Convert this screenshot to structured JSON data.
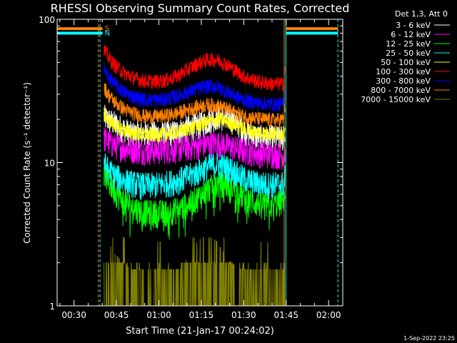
{
  "chart_data": {
    "type": "line",
    "title": "RHESSI Observing Summary Count Rates, Corrected",
    "xlabel": "Start Time (21-Jan-17 00:24:02)",
    "ylabel": "Corrected Count Rate (s⁻¹ detector⁻¹)",
    "x_unit": "minutes after 00:00 UT",
    "xlim": [
      24.03,
      125
    ],
    "ylim": [
      1,
      100
    ],
    "y_scale": "log",
    "grid": false,
    "legend_placement": "top-right, outside plot",
    "legend_header": "Det 1,3, Att 0",
    "xtick_labels": [
      "00:30",
      "00:45",
      "01:00",
      "01:15",
      "01:30",
      "01:45",
      "02:00"
    ],
    "xtick_values": [
      30,
      45,
      60,
      75,
      90,
      105,
      120
    ],
    "ytick_labels": [
      "1",
      "10",
      "100"
    ],
    "ytick_values": [
      1,
      10,
      100
    ],
    "x": [
      40.6,
      42,
      44,
      46,
      48,
      50,
      52,
      54,
      56,
      58,
      60,
      62,
      64,
      66,
      68,
      70,
      72,
      74,
      76,
      78,
      80,
      82,
      84,
      86,
      88,
      90,
      92,
      94,
      96,
      98,
      100,
      102,
      104,
      104.6
    ],
    "series": [
      {
        "name": "3 - 6 keV",
        "color": "#ffffff",
        "values": [
          21,
          20,
          19,
          18,
          17,
          16,
          16,
          16,
          16,
          16,
          16,
          16,
          16,
          16.5,
          17,
          17.5,
          18,
          18.5,
          19,
          20,
          21,
          21,
          21,
          20,
          19,
          17,
          16,
          15.5,
          15,
          15,
          15,
          15,
          15,
          16
        ]
      },
      {
        "name": "6 - 12 keV",
        "color": "#ff00ff",
        "values": [
          15,
          14,
          13.5,
          13,
          12.7,
          12.5,
          12.3,
          12.2,
          12.2,
          12.2,
          12.2,
          12.3,
          12.4,
          12.5,
          12.6,
          12.8,
          13,
          13.2,
          13.4,
          13.6,
          13.7,
          13.6,
          13.3,
          12.9,
          12.5,
          12.2,
          12,
          11.8,
          11.6,
          11.5,
          11.5,
          11.4,
          11.3,
          12
        ]
      },
      {
        "name": "12 - 25 keV",
        "color": "#00ff00",
        "values": [
          9,
          7.5,
          6.5,
          5.8,
          5.3,
          5,
          4.8,
          4.6,
          4.5,
          4.5,
          4.5,
          4.5,
          4.6,
          4.7,
          4.9,
          5.1,
          5.4,
          5.8,
          6.2,
          6.7,
          7,
          7.2,
          7.1,
          6.8,
          6.3,
          5.8,
          5.5,
          5.3,
          5.2,
          5.1,
          5.1,
          5.2,
          5.4,
          6
        ]
      },
      {
        "name": "25 - 50 keV",
        "color": "#00ffff",
        "values": [
          10,
          9,
          8.3,
          7.8,
          7.5,
          7.3,
          7.1,
          7,
          7,
          7,
          7.1,
          7.2,
          7.3,
          7.5,
          7.7,
          8,
          8.3,
          8.7,
          9.1,
          9.5,
          9.7,
          9.6,
          9.3,
          8.9,
          8.3,
          7.8,
          7.5,
          7.3,
          7.2,
          7.1,
          7.1,
          7.1,
          7.2,
          8
        ]
      },
      {
        "name": "50 - 100 keV",
        "color": "#ffff00",
        "values": [
          22,
          20,
          18.5,
          17.5,
          16.8,
          16.3,
          16,
          15.8,
          15.7,
          15.7,
          15.7,
          15.8,
          16,
          16.3,
          16.7,
          17.2,
          17.7,
          18.3,
          18.9,
          19.4,
          19.8,
          19.9,
          19.5,
          18.8,
          18,
          17.2,
          16.7,
          16.4,
          16.2,
          16.1,
          16,
          16,
          16.1,
          17
        ]
      },
      {
        "name": "100 - 300 keV",
        "color": "#ff0000",
        "values": [
          62,
          55,
          49,
          45,
          42,
          40,
          38.5,
          37.5,
          37,
          37,
          37,
          37.5,
          38.5,
          40,
          42,
          44.5,
          47,
          49.5,
          51.5,
          52.5,
          52.5,
          51,
          48.5,
          45.5,
          42.5,
          40,
          38.5,
          37.5,
          36.5,
          36,
          35.5,
          35.5,
          35.5,
          45
        ]
      },
      {
        "name": "300 - 800 keV",
        "color": "#0000ff",
        "values": [
          45,
          40,
          36,
          33,
          31,
          29.5,
          28.5,
          28,
          27.5,
          27.5,
          27.5,
          27.8,
          28.3,
          29,
          30,
          31,
          32,
          33,
          33.8,
          34.2,
          34,
          33,
          31.5,
          30,
          28.5,
          27.5,
          26.8,
          26.3,
          26,
          25.8,
          25.7,
          25.6,
          25.6,
          32
        ]
      },
      {
        "name": "800 - 7000 keV",
        "color": "#ff8000",
        "values": [
          34,
          30,
          27,
          25,
          23.5,
          22.5,
          21.8,
          21.3,
          21,
          21,
          21,
          21.2,
          21.6,
          22,
          22.6,
          23.3,
          24,
          24.6,
          25.1,
          25.3,
          25.1,
          24.5,
          23.7,
          22.8,
          21.9,
          21.2,
          20.7,
          20.4,
          20.2,
          20,
          19.9,
          19.9,
          20,
          25
        ]
      },
      {
        "name": "7000 - 15000 keV",
        "color": "#808000",
        "values": [
          2,
          1.6,
          1.3,
          1.2,
          1.1,
          1,
          1,
          1,
          1,
          1,
          1,
          1,
          1,
          1,
          1,
          1.2,
          1.4,
          1.6,
          1.7,
          1.7,
          1.6,
          1.4,
          1.2,
          1.1,
          1,
          1,
          1,
          1,
          1,
          1,
          1,
          1,
          1,
          1.5
        ]
      }
    ],
    "flag_lines": [
      {
        "label": "S",
        "color": "#ff8000",
        "segments": [
          [
            24.03,
            40.1,
            86
          ],
          [
            104.9,
            123.3,
            86
          ]
        ]
      },
      {
        "label": "N",
        "color": "#00ffff",
        "segments": [
          [
            24.03,
            40.1,
            80
          ],
          [
            104.9,
            123.3,
            80
          ]
        ]
      }
    ],
    "vertical_markers": [
      {
        "x": 38.6,
        "color": "#ff8000",
        "style": "dashed"
      },
      {
        "x": 39.2,
        "color": "#00ffff",
        "style": "dashed"
      },
      {
        "x": 104.3,
        "color": "#ff8000",
        "style": "solid"
      },
      {
        "x": 104.9,
        "color": "#00ffff",
        "style": "solid"
      },
      {
        "x": 123.3,
        "color": "#00ffff",
        "style": "dashed"
      }
    ]
  },
  "footer": {
    "timestamp": "1-Sep-2022 23:25"
  }
}
